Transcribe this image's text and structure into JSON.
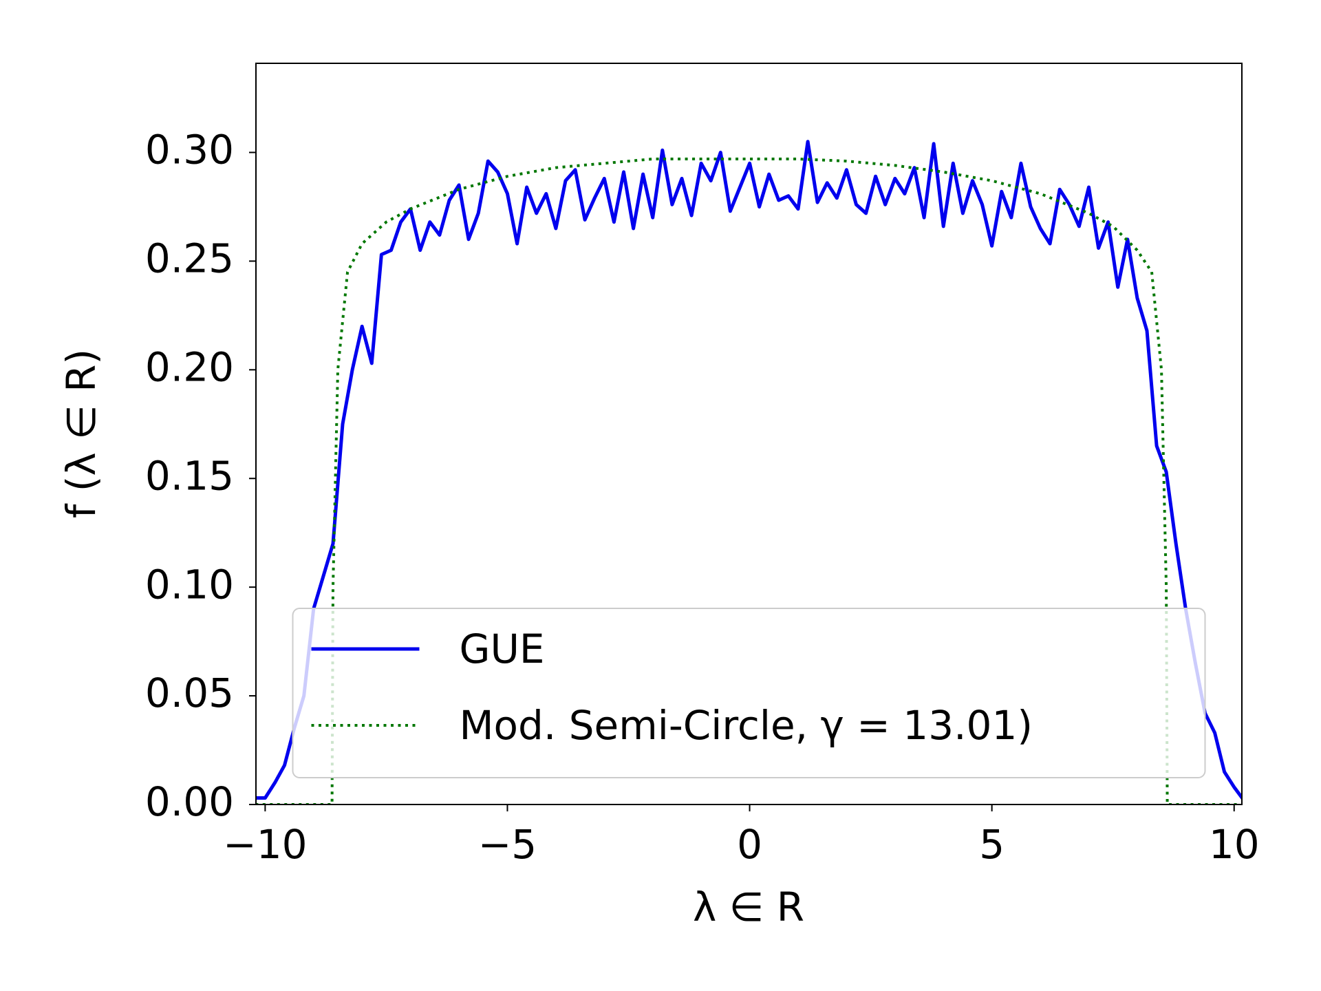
{
  "chart_data": {
    "type": "line",
    "xlabel": "λ ∈ R",
    "ylabel": "f  (λ ∈ R)",
    "xlim": [
      -10.19,
      10.16
    ],
    "ylim": [
      0,
      0.341
    ],
    "xticks": [
      {
        "value": -10,
        "label": "−10"
      },
      {
        "value": -5,
        "label": "−5"
      },
      0,
      5,
      10
    ],
    "yticks": [
      {
        "value": 0,
        "label": "0.00"
      },
      {
        "value": 0.05,
        "label": "0.05"
      },
      {
        "value": 0.1,
        "label": "0.10"
      },
      {
        "value": 0.15,
        "label": "0.15"
      },
      {
        "value": 0.2,
        "label": "0.20"
      },
      {
        "value": 0.25,
        "label": "0.25"
      },
      {
        "value": 0.3,
        "label": "0.30"
      }
    ],
    "legend": "lower center",
    "series": [
      {
        "name": "GUE",
        "color": "#0000ee",
        "style": "solid",
        "x": [
          -10.2,
          -10.0,
          -9.8,
          -9.6,
          -9.4,
          -9.2,
          -9.0,
          -8.8,
          -8.6,
          -8.4,
          -8.2,
          -8.0,
          -7.8,
          -7.6,
          -7.4,
          -7.2,
          -7.0,
          -6.8,
          -6.6,
          -6.4,
          -6.2,
          -6.0,
          -5.8,
          -5.6,
          -5.4,
          -5.2,
          -5.0,
          -4.8,
          -4.6,
          -4.4,
          -4.2,
          -4.0,
          -3.8,
          -3.6,
          -3.4,
          -3.2,
          -3.0,
          -2.8,
          -2.6,
          -2.4,
          -2.2,
          -2.0,
          -1.8,
          -1.6,
          -1.4,
          -1.2,
          -1.0,
          -0.8,
          -0.6,
          -0.4,
          -0.2,
          0.0,
          0.2,
          0.4,
          0.6,
          0.8,
          1.0,
          1.2,
          1.4,
          1.6,
          1.8,
          2.0,
          2.2,
          2.4,
          2.6,
          2.8,
          3.0,
          3.2,
          3.4,
          3.6,
          3.8,
          4.0,
          4.2,
          4.4,
          4.6,
          4.8,
          5.0,
          5.2,
          5.4,
          5.6,
          5.8,
          6.0,
          6.2,
          6.4,
          6.6,
          6.8,
          7.0,
          7.2,
          7.4,
          7.6,
          7.8,
          8.0,
          8.2,
          8.4,
          8.6,
          8.8,
          9.0,
          9.2,
          9.4,
          9.6,
          9.8,
          10.0,
          10.2
        ],
        "values": [
          0.003,
          0.003,
          0.01,
          0.018,
          0.035,
          0.05,
          0.09,
          0.105,
          0.12,
          0.175,
          0.2,
          0.22,
          0.203,
          0.253,
          0.255,
          0.268,
          0.274,
          0.255,
          0.268,
          0.262,
          0.278,
          0.285,
          0.26,
          0.272,
          0.296,
          0.291,
          0.281,
          0.258,
          0.284,
          0.272,
          0.281,
          0.265,
          0.287,
          0.292,
          0.269,
          0.279,
          0.288,
          0.268,
          0.291,
          0.265,
          0.29,
          0.27,
          0.301,
          0.276,
          0.288,
          0.271,
          0.295,
          0.287,
          0.3,
          0.273,
          0.284,
          0.295,
          0.275,
          0.29,
          0.278,
          0.28,
          0.274,
          0.305,
          0.277,
          0.286,
          0.279,
          0.292,
          0.276,
          0.272,
          0.289,
          0.276,
          0.288,
          0.281,
          0.293,
          0.27,
          0.304,
          0.266,
          0.295,
          0.272,
          0.287,
          0.276,
          0.257,
          0.282,
          0.27,
          0.295,
          0.275,
          0.265,
          0.258,
          0.283,
          0.276,
          0.266,
          0.284,
          0.256,
          0.268,
          0.238,
          0.26,
          0.233,
          0.218,
          0.165,
          0.153,
          0.12,
          0.09,
          0.065,
          0.042,
          0.033,
          0.015,
          0.008,
          0.002
        ]
      },
      {
        "name": "Mod. Semi-Circle, γ = 13.01)",
        "color": "#007700",
        "style": "dotted",
        "x": [
          -10.2,
          -8.62,
          -8.6,
          -8.5,
          -8.3,
          -8.0,
          -7.5,
          -7.0,
          -6.0,
          -5.0,
          -4.0,
          -3.0,
          -2.0,
          -1.0,
          0.0,
          1.0,
          2.0,
          3.0,
          4.0,
          5.0,
          6.0,
          7.0,
          7.5,
          8.0,
          8.3,
          8.5,
          8.6,
          8.62,
          10.2
        ],
        "values": [
          0,
          0,
          0.1,
          0.2,
          0.245,
          0.258,
          0.268,
          0.274,
          0.283,
          0.289,
          0.293,
          0.295,
          0.297,
          0.297,
          0.297,
          0.297,
          0.296,
          0.294,
          0.291,
          0.287,
          0.281,
          0.272,
          0.266,
          0.255,
          0.245,
          0.2,
          0.1,
          0,
          0
        ]
      }
    ]
  }
}
